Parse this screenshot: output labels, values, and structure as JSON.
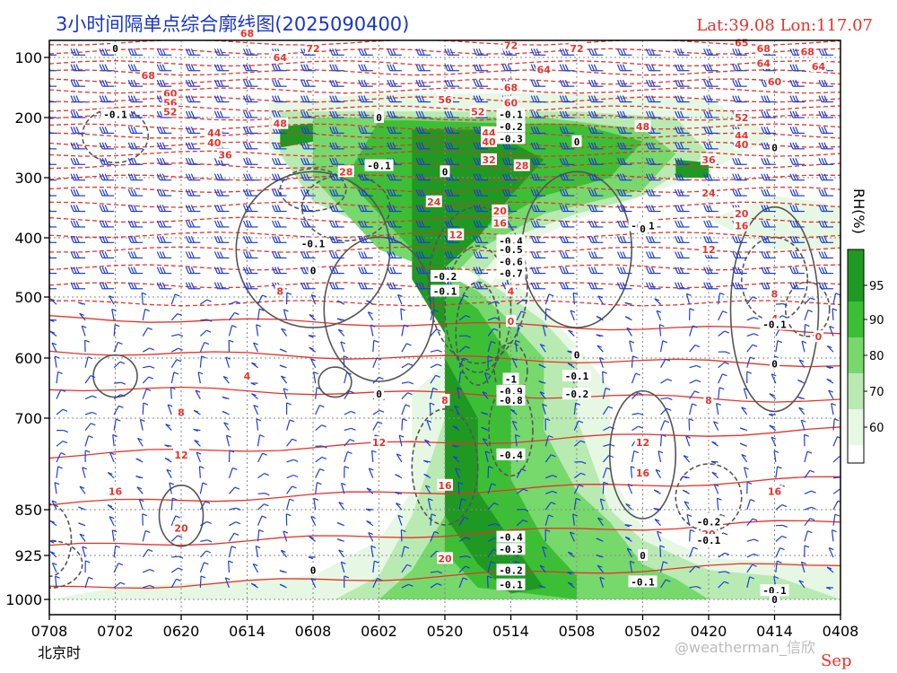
{
  "title": "3小时间隔单点综合廓线图(2025090400)",
  "coords": "Lat:39.08  Lon:117.07",
  "x_caption": "北京时",
  "month_label": "Sep",
  "watermark": "@weatherman_信欣",
  "colorbar": {
    "label": "RH(%)",
    "ticks": [
      "95",
      "90",
      "80",
      "70",
      "60"
    ]
  },
  "colors": {
    "rh_60": "#e6f7e3",
    "rh_70": "#b8eab2",
    "rh_80": "#77d86c",
    "rh_90": "#3cbf35",
    "rh_95": "#1f9922",
    "temp": "#e8322a",
    "omega": "#555555",
    "wind": "#1d3fd6",
    "title": "#1a37c8"
  },
  "chart_data": {
    "type": "heatmap",
    "title": "3小时间隔单点综合廓线图(2025090400)",
    "subtitle": "Lat:39.08  Lon:117.07",
    "xlabel": "北京时",
    "ylabel": "",
    "x_ticks": [
      "0708",
      "0702",
      "0620",
      "0614",
      "0608",
      "0602",
      "0520",
      "0514",
      "0508",
      "0502",
      "0420",
      "0414",
      "0408"
    ],
    "y_ticks": [
      100,
      200,
      300,
      400,
      500,
      600,
      700,
      850,
      925,
      1000
    ],
    "grid": true,
    "fields": [
      "RH (%) shading",
      "temperature (°C) contours",
      "vertical velocity contours",
      "wind barbs"
    ],
    "rh_levels": [
      60,
      70,
      80,
      90,
      95
    ],
    "temperature_labels": [
      {
        "t": "0623",
        "p": 130,
        "v": "68"
      },
      {
        "t": "0621",
        "p": 160,
        "v": "60"
      },
      {
        "t": "0621",
        "p": 175,
        "v": "56"
      },
      {
        "t": "0621",
        "p": 190,
        "v": "52"
      },
      {
        "t": "0617",
        "p": 225,
        "v": "44"
      },
      {
        "t": "0617",
        "p": 242,
        "v": "40"
      },
      {
        "t": "0616",
        "p": 262,
        "v": "36"
      },
      {
        "t": "0611",
        "p": 210,
        "v": "48"
      },
      {
        "t": "0605",
        "p": 290,
        "v": "28"
      },
      {
        "t": "0611",
        "p": 100,
        "v": "64"
      },
      {
        "t": "0608",
        "p": 85,
        "v": "72"
      },
      {
        "t": "0614",
        "p": 60,
        "v": "68"
      },
      {
        "t": "0521",
        "p": 340,
        "v": "24"
      },
      {
        "t": "0520",
        "p": 170,
        "v": "56"
      },
      {
        "t": "0517",
        "p": 190,
        "v": "52"
      },
      {
        "t": "0516",
        "p": 225,
        "v": "44"
      },
      {
        "t": "0516",
        "p": 240,
        "v": "40"
      },
      {
        "t": "0516",
        "p": 270,
        "v": "32"
      },
      {
        "t": "0515",
        "p": 355,
        "v": "20"
      },
      {
        "t": "0515",
        "p": 375,
        "v": "16"
      },
      {
        "t": "0519",
        "p": 395,
        "v": "12"
      },
      {
        "t": "0513",
        "p": 280,
        "v": "28"
      },
      {
        "t": "0514",
        "p": 175,
        "v": "60"
      },
      {
        "t": "0514",
        "p": 150,
        "v": "68"
      },
      {
        "t": "0514",
        "p": 80,
        "v": "72"
      },
      {
        "t": "0511",
        "p": 120,
        "v": "64"
      },
      {
        "t": "0508",
        "p": 85,
        "v": "72"
      },
      {
        "t": "0502",
        "p": 215,
        "v": "48"
      },
      {
        "t": "0420",
        "p": 270,
        "v": "36"
      },
      {
        "t": "0420",
        "p": 325,
        "v": "24"
      },
      {
        "t": "0417",
        "p": 200,
        "v": "52"
      },
      {
        "t": "0417",
        "p": 230,
        "v": "44"
      },
      {
        "t": "0417",
        "p": 245,
        "v": "40"
      },
      {
        "t": "0417",
        "p": 360,
        "v": "20"
      },
      {
        "t": "0417",
        "p": 380,
        "v": "16"
      },
      {
        "t": "0420",
        "p": 420,
        "v": "12"
      },
      {
        "t": "0415",
        "p": 85,
        "v": "68"
      },
      {
        "t": "0415",
        "p": 110,
        "v": "64"
      },
      {
        "t": "0414",
        "p": 140,
        "v": "60"
      },
      {
        "t": "0411",
        "p": 90,
        "v": "68"
      },
      {
        "t": "0410",
        "p": 115,
        "v": "64"
      },
      {
        "t": "0417",
        "p": 75,
        "v": "65"
      },
      {
        "t": "0414",
        "p": 495,
        "v": "8"
      },
      {
        "t": "0414",
        "p": 535,
        "v": "4"
      },
      {
        "t": "0410",
        "p": 565,
        "v": "0"
      },
      {
        "t": "0611",
        "p": 490,
        "v": "8"
      },
      {
        "t": "0514",
        "p": 490,
        "v": "4"
      },
      {
        "t": "0514",
        "p": 540,
        "v": "0"
      },
      {
        "t": "0614",
        "p": 630,
        "v": "4"
      },
      {
        "t": "0620",
        "p": 690,
        "v": "8"
      },
      {
        "t": "0620",
        "p": 760,
        "v": "12"
      },
      {
        "t": "0702",
        "p": 820,
        "v": "16"
      },
      {
        "t": "0620",
        "p": 880,
        "v": "20"
      },
      {
        "t": "0520",
        "p": 670,
        "v": "8"
      },
      {
        "t": "0602",
        "p": 740,
        "v": "12"
      },
      {
        "t": "0520",
        "p": 810,
        "v": "16"
      },
      {
        "t": "0520",
        "p": 930,
        "v": "20"
      },
      {
        "t": "0420",
        "p": 670,
        "v": "8"
      },
      {
        "t": "0502",
        "p": 740,
        "v": "12"
      },
      {
        "t": "0502",
        "p": 790,
        "v": "16"
      },
      {
        "t": "0414",
        "p": 820,
        "v": "16"
      },
      {
        "t": "0420",
        "p": 890,
        "v": "20"
      }
    ],
    "omega_labels": [
      {
        "t": "0702",
        "p": 195,
        "v": "-0.1"
      },
      {
        "t": "0702",
        "p": 85,
        "v": "0"
      },
      {
        "t": "0608",
        "p": 410,
        "v": "-0.1"
      },
      {
        "t": "0608",
        "p": 455,
        "v": "0"
      },
      {
        "t": "0602",
        "p": 200,
        "v": "0"
      },
      {
        "t": "0602",
        "p": 280,
        "v": "-0.1"
      },
      {
        "t": "0520",
        "p": 290,
        "v": "0"
      },
      {
        "t": "0520",
        "p": 465,
        "v": "-0.2"
      },
      {
        "t": "0520",
        "p": 490,
        "v": "-0.1"
      },
      {
        "t": "0514",
        "p": 195,
        "v": "-0.1"
      },
      {
        "t": "0514",
        "p": 215,
        "v": "-0.2"
      },
      {
        "t": "0514",
        "p": 235,
        "v": "-0.3"
      },
      {
        "t": "0514",
        "p": 405,
        "v": "-0.4"
      },
      {
        "t": "0514",
        "p": 420,
        "v": "-0.5"
      },
      {
        "t": "0514",
        "p": 440,
        "v": "-0.6"
      },
      {
        "t": "0514",
        "p": 460,
        "v": "-0.7"
      },
      {
        "t": "0514",
        "p": 635,
        "v": "-1"
      },
      {
        "t": "0514",
        "p": 655,
        "v": "-0.9"
      },
      {
        "t": "0514",
        "p": 670,
        "v": "-0.8"
      },
      {
        "t": "0514",
        "p": 760,
        "v": "-0.4"
      },
      {
        "t": "0514",
        "p": 895,
        "v": "-0.4"
      },
      {
        "t": "0514",
        "p": 915,
        "v": "-0.3"
      },
      {
        "t": "0514",
        "p": 950,
        "v": "-0.2"
      },
      {
        "t": "0514",
        "p": 975,
        "v": "-0.1"
      },
      {
        "t": "0508",
        "p": 240,
        "v": "0"
      },
      {
        "t": "0508",
        "p": 630,
        "v": "-0.1"
      },
      {
        "t": "0508",
        "p": 660,
        "v": "-0.2"
      },
      {
        "t": "0502",
        "p": 380,
        "v": "-0.1"
      },
      {
        "t": "0502",
        "p": 385,
        "v": "0"
      },
      {
        "t": "0420",
        "p": 870,
        "v": "-0.2"
      },
      {
        "t": "0420",
        "p": 900,
        "v": "-0.1"
      },
      {
        "t": "0502",
        "p": 970,
        "v": "-0.1"
      },
      {
        "t": "0414",
        "p": 985,
        "v": "-0.1"
      },
      {
        "t": "0414",
        "p": 250,
        "v": "0"
      },
      {
        "t": "0414",
        "p": 545,
        "v": "-0.1"
      },
      {
        "t": "0414",
        "p": 610,
        "v": "0"
      },
      {
        "t": "0414",
        "p": 1000,
        "v": "0"
      },
      {
        "t": "0508",
        "p": 595,
        "v": "0"
      },
      {
        "t": "0602",
        "p": 660,
        "v": "0"
      },
      {
        "t": "0608",
        "p": 950,
        "v": "0"
      },
      {
        "t": "0502",
        "p": 925,
        "v": "0"
      }
    ]
  }
}
